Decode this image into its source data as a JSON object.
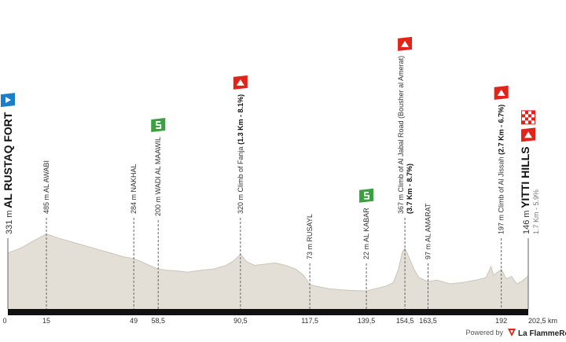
{
  "chart_data": {
    "type": "area",
    "color": "#e3dfd7",
    "line_color": "#cbc5bb",
    "x": [
      0,
      5,
      10,
      15,
      20,
      25,
      30,
      35,
      40,
      45,
      49,
      52,
      55,
      58.5,
      62,
      66,
      70,
      75,
      80,
      85,
      88,
      90.5,
      93,
      96,
      100,
      104,
      108,
      112,
      115,
      117.5,
      120,
      125,
      130,
      135,
      139.5,
      143,
      147,
      150,
      152,
      153.5,
      154.5,
      156,
      158,
      160,
      163.5,
      167,
      172,
      177,
      182,
      186,
      188,
      189,
      192,
      194,
      196,
      198,
      200,
      202.5
    ],
    "values": [
      331,
      370,
      430,
      485,
      450,
      420,
      390,
      360,
      330,
      300,
      284,
      260,
      230,
      200,
      190,
      185,
      175,
      190,
      200,
      230,
      270,
      320,
      260,
      230,
      240,
      250,
      230,
      200,
      150,
      73,
      60,
      40,
      30,
      25,
      22,
      40,
      60,
      90,
      200,
      340,
      367,
      300,
      200,
      130,
      97,
      110,
      80,
      90,
      110,
      130,
      220,
      150,
      197,
      120,
      140,
      80,
      100,
      146
    ],
    "xlim": [
      0,
      202.5
    ],
    "ylim": [
      -125,
      1200
    ],
    "xticks": [
      0,
      15,
      49,
      {
        "value": 58.5,
        "label": "58,5"
      },
      {
        "value": 90.5,
        "label": "90,5"
      },
      {
        "value": 117.5,
        "label": "117,5"
      },
      {
        "value": 139.5,
        "label": "139,5"
      },
      {
        "value": 154.5,
        "label": "154,5"
      },
      {
        "value": 163.5,
        "label": "163,5"
      },
      192,
      {
        "value": 202.5,
        "label": "202,5 km"
      }
    ],
    "waypoints": [
      {
        "elevation": "331 m",
        "name": "AL RUSTAQ FORT",
        "icon": "start"
      },
      {
        "elevation": "485 m",
        "name": "AL AWABI"
      },
      {
        "elevation": "284 m",
        "name": "NAKHAL"
      },
      {
        "elevation": "200 m",
        "name": "WADI AL MAAWIL",
        "icon": "sprint"
      },
      {
        "elevation": "320 m",
        "name": "Climb of Fanja",
        "detail": "(1.3 Km - 8.1%)",
        "icon": "climb"
      },
      {
        "elevation": "73 m",
        "name": "RUSAYL"
      },
      {
        "elevation": "22 m",
        "name": "AL KABAR",
        "icon": "sprint"
      },
      {
        "elevation": "367 m",
        "name": "Climb of Al Jabal Road (Bousher al Amerat)",
        "detail": "(3.7 Km - 8.7%)",
        "icon": "climb"
      },
      {
        "elevation": "97 m",
        "name": "AL AMARAT"
      },
      {
        "elevation": "197 m",
        "name": "Climb of Al Jissah",
        "detail": "(2.7 Km - 6.7%)",
        "icon": "climb"
      },
      {
        "elevation": "146 m",
        "name": "YITTI HILLS",
        "detail": "1.7 Km - 5.9%",
        "icon": "finish"
      }
    ]
  },
  "footer": {
    "powered": "Powered by",
    "brand": "La FlammeRouge"
  }
}
